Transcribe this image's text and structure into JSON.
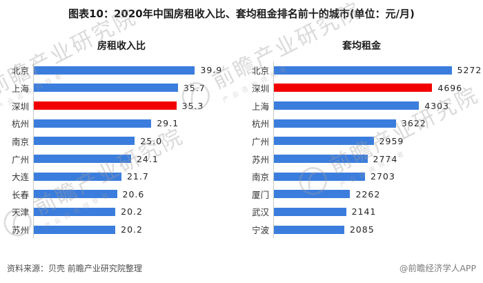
{
  "title": "图表10：2020年中国房租收入比、套均租金排名前十的城市(单位：元/月)",
  "watermark": {
    "brand": "前瞻产业研究院",
    "tagline": "产业咨询领导者"
  },
  "footer": {
    "source": "资料来源：贝壳 前瞻产业研究院整理",
    "credit": "@前瞻经济学人APP"
  },
  "colors": {
    "bar_blue": "#3B7DDD",
    "bar_red": "#F20000",
    "axis_line": "#C9C9C9"
  },
  "chart_data": [
    {
      "type": "bar",
      "orientation": "horizontal",
      "title": "房租收入比",
      "categories": [
        "北京",
        "上海",
        "深圳",
        "杭州",
        "南京",
        "广州",
        "大连",
        "长春",
        "天津",
        "苏州"
      ],
      "values": [
        39.9,
        35.7,
        35.3,
        29.1,
        25.0,
        24.1,
        21.7,
        20.6,
        20.2,
        20.2
      ],
      "value_labels": [
        "39.9",
        "35.7",
        "35.3",
        "29.1",
        "25.0",
        "24.1",
        "21.7",
        "20.6",
        "20.2",
        "20.2"
      ],
      "highlight_category": "深圳",
      "bar_color": "#3B7DDD",
      "highlight_color": "#F20000",
      "value_label_position": "end",
      "gridlines": false,
      "xlim": [
        0,
        50
      ]
    },
    {
      "type": "bar",
      "orientation": "horizontal",
      "title": "套均租金",
      "categories": [
        "北京",
        "深圳",
        "上海",
        "杭州",
        "广州",
        "苏州",
        "南京",
        "厦门",
        "武汉",
        "宁波"
      ],
      "values": [
        5272,
        4696,
        4303,
        3622,
        2959,
        2774,
        2703,
        2262,
        2141,
        2085
      ],
      "value_labels": [
        "5272",
        "4696",
        "4303",
        "3622",
        "2959",
        "2774",
        "2703",
        "2262",
        "2141",
        "2085"
      ],
      "highlight_category": "深圳",
      "bar_color": "#3B7DDD",
      "highlight_color": "#F20000",
      "value_label_position": "end",
      "gridlines": false,
      "xlim": [
        0,
        6000
      ]
    }
  ]
}
